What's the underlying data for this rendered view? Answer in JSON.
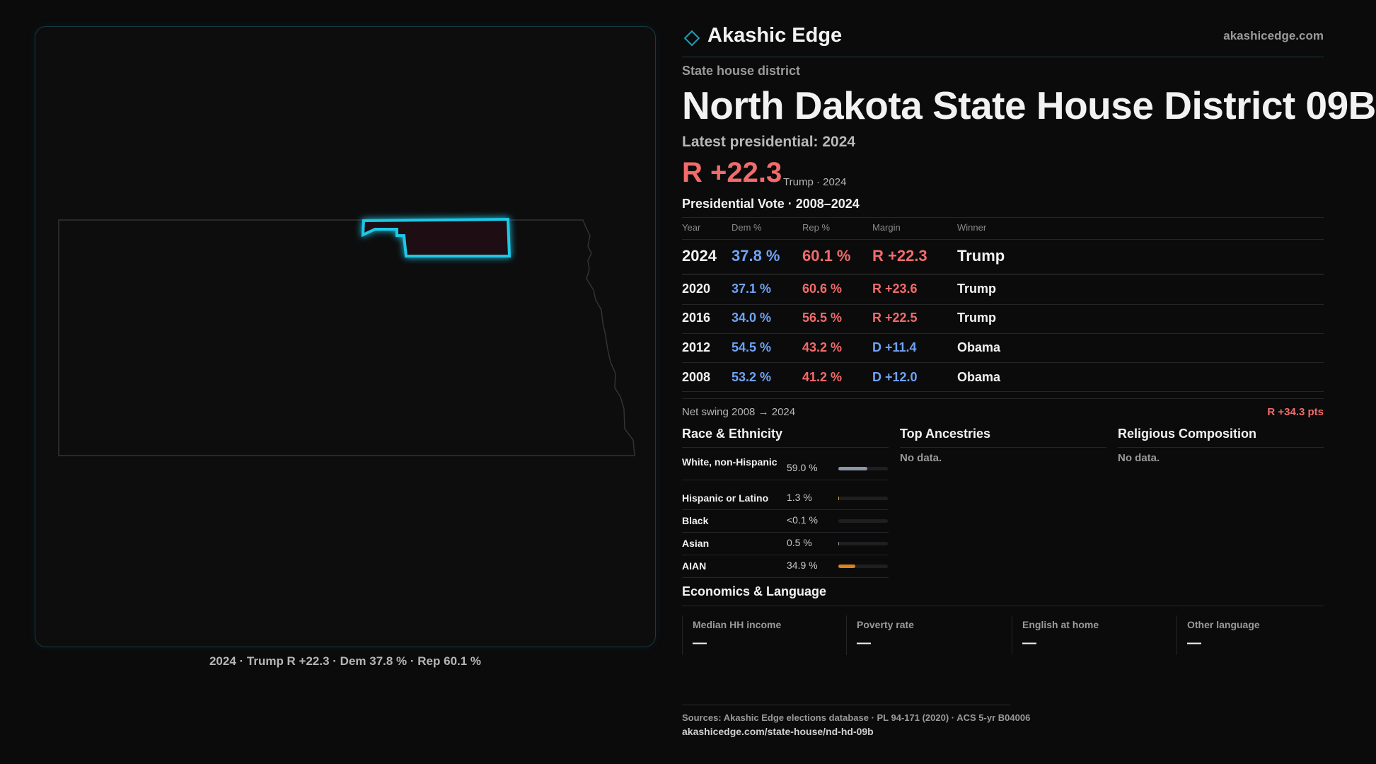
{
  "header": {
    "brand": "Akashic Edge",
    "site": "akashicedge.com"
  },
  "district": {
    "kind": "State house district",
    "title": "North Dakota State House District 09B",
    "latest_label": "Latest presidential: 2024",
    "margin": "R +22.3",
    "margin_note": "Trump · 2024"
  },
  "map": {
    "caption": "2024 · Trump R +22.3 · Dem 37.8 % · Rep 60.1 %"
  },
  "presidential": {
    "title": "Presidential Vote · 2008–2024",
    "columns": [
      "Year",
      "Dem %",
      "Rep %",
      "Margin",
      "Winner"
    ],
    "rows": [
      {
        "cells": [
          "2024",
          "37.8 %",
          "60.1 %",
          "R +22.3",
          "Trump"
        ],
        "margin_color": "#f26b6b"
      },
      {
        "cells": [
          "2020",
          "37.1 %",
          "60.6 %",
          "R +23.6",
          "Trump"
        ],
        "margin_color": "#f26b6b"
      },
      {
        "cells": [
          "2016",
          "34.0 %",
          "56.5 %",
          "R +22.5",
          "Trump"
        ],
        "margin_color": "#f26b6b"
      },
      {
        "cells": [
          "2012",
          "54.5 %",
          "43.2 %",
          "D +11.4",
          "Obama"
        ],
        "margin_color": "#6fa3f5"
      },
      {
        "cells": [
          "2008",
          "53.2 %",
          "41.2 %",
          "D +12.0",
          "Obama"
        ],
        "margin_color": "#6fa3f5"
      }
    ],
    "swing_label": "Net swing 2008 → 2024",
    "swing": "R +34.3 pts"
  },
  "race": {
    "title": "Race & Ethnicity",
    "rows": [
      {
        "label": "White, non-Hispanic",
        "value_label": "59.0 %",
        "value": 59.0,
        "color": "#8d96a6"
      },
      {
        "label": "Hispanic or Latino",
        "value_label": "1.3 %",
        "value": 1.3,
        "color": "#d9a520"
      },
      {
        "label": "Black",
        "value_label": "<0.1 %",
        "value": 0.1,
        "color": "#8d96a6"
      },
      {
        "label": "Asian",
        "value_label": "0.5 %",
        "value": 0.5,
        "color": "#8d96a6"
      },
      {
        "label": "AIAN",
        "value_label": "34.9 %",
        "value": 34.9,
        "color": "#d9821f"
      }
    ]
  },
  "ancestries": {
    "title": "Top Ancestries",
    "note": "No data."
  },
  "religion": {
    "title": "Religious Composition",
    "note": "No data."
  },
  "economics": {
    "title": "Economics & Language",
    "cells": [
      {
        "label": "Median HH income",
        "value": "—"
      },
      {
        "label": "Poverty rate",
        "value": "—"
      },
      {
        "label": "English at home",
        "value": "—"
      },
      {
        "label": "Other language",
        "value": "—"
      }
    ]
  },
  "footer": {
    "sources": "Sources: Akashic Edge elections database · PL 94-171 (2020) · ACS 5-yr B04006",
    "url": "akashicedge.com/state-house/nd-hd-09b"
  }
}
